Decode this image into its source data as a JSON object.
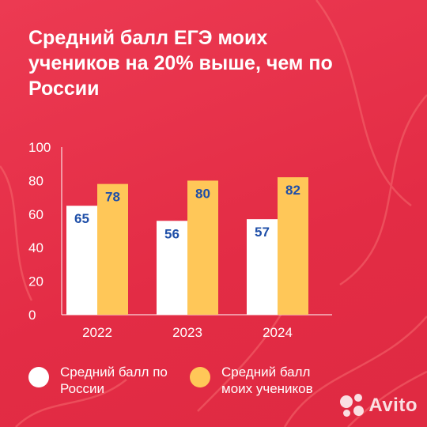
{
  "title": "Средний балл ЕГЭ моих учеников на 20% выше, чем по России",
  "colors": {
    "background": "#e8314a",
    "series_russia": "#ffffff",
    "series_students": "#ffc758",
    "value_label": "#1f4fa8",
    "axis_text": "#ffffff"
  },
  "chart_data": {
    "type": "bar",
    "categories": [
      "2022",
      "2023",
      "2024"
    ],
    "series": [
      {
        "name": "Средний балл по России",
        "values": [
          65,
          56,
          57
        ]
      },
      {
        "name": "Средний балл моих учеников",
        "values": [
          78,
          80,
          82
        ]
      }
    ],
    "ylim": [
      0,
      100
    ],
    "yticks": [
      0,
      20,
      40,
      60,
      80,
      100
    ],
    "grid": false,
    "legend": "bottom",
    "xlabel": "",
    "ylabel": ""
  },
  "legend": {
    "russia_label": "Средний балл по России",
    "students_label": "Средний балл моих учеников"
  },
  "watermark": {
    "brand": "Avito"
  }
}
